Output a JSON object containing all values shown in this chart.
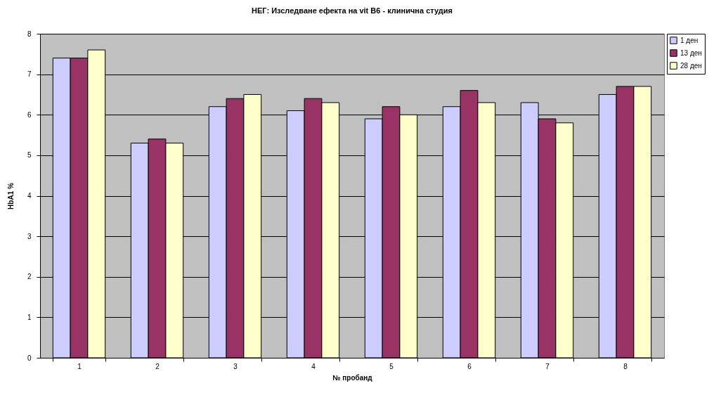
{
  "chart_data": {
    "type": "bar",
    "title": "НЕГ: Изследване ефекта на vit B6 - клинична студия",
    "xlabel": "№ пробанд",
    "ylabel": "HbA1 %",
    "categories": [
      "1",
      "2",
      "3",
      "4",
      "5",
      "6",
      "7",
      "8"
    ],
    "series": [
      {
        "name": "1 ден",
        "color": "#ccccff",
        "values": [
          7.4,
          5.3,
          6.2,
          6.1,
          5.9,
          6.2,
          6.3,
          6.5
        ]
      },
      {
        "name": "13 ден",
        "color": "#993366",
        "values": [
          7.4,
          5.4,
          6.4,
          6.4,
          6.2,
          6.6,
          5.9,
          6.7
        ]
      },
      {
        "name": "28 ден",
        "color": "#ffffcc",
        "values": [
          7.6,
          5.3,
          6.5,
          6.3,
          6.0,
          6.3,
          5.8,
          6.7
        ]
      }
    ],
    "ylim": [
      0,
      8
    ],
    "yticks": [
      0,
      1,
      2,
      3,
      4,
      5,
      6,
      7,
      8
    ],
    "grid": "y",
    "legend": "right"
  }
}
